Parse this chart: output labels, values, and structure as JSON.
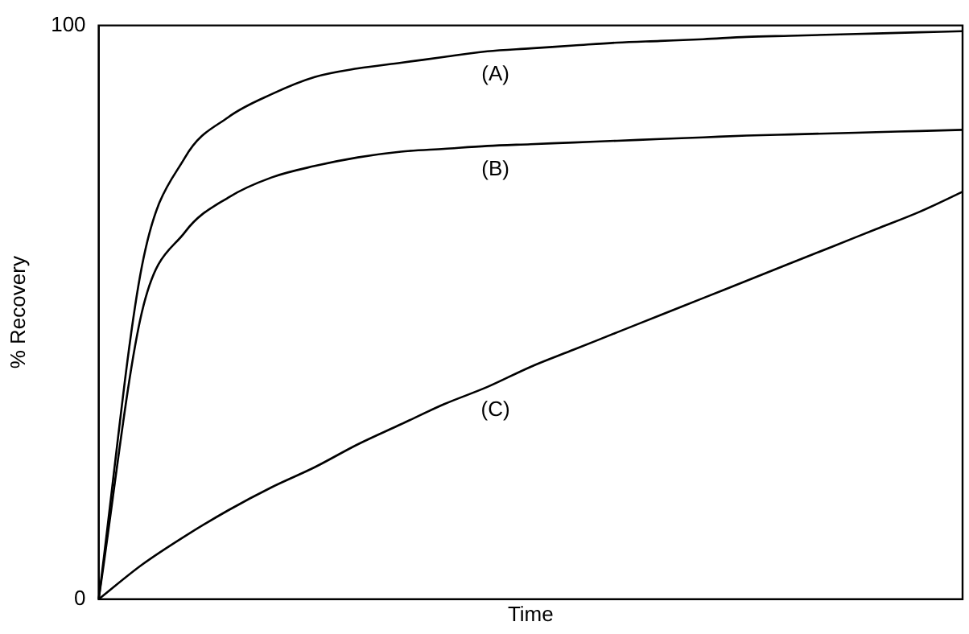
{
  "chart_data": {
    "type": "line",
    "xlabel": "Time",
    "ylabel": "% Recovery",
    "categories": [
      null,
      null,
      null,
      null,
      null,
      null,
      null,
      null,
      null,
      null,
      null,
      null,
      null,
      null,
      null,
      null,
      null,
      null,
      null,
      null,
      null
    ],
    "series": [
      {
        "color": "#000000",
        "values": [
          0,
          58,
          77,
          84,
          88,
          91,
          92.5,
          93.5,
          94.5,
          95.5,
          96,
          96.5,
          97,
          97.3,
          97.6,
          98,
          98.2,
          98.4,
          98.6,
          98.8,
          99
        ]
      },
      {
        "color": "#000000",
        "values": [
          0,
          50,
          64,
          70,
          73.5,
          75.5,
          77,
          78,
          78.5,
          79,
          79.3,
          79.6,
          79.9,
          80.2,
          80.5,
          80.8,
          81,
          81.2,
          81.4,
          81.6,
          81.8
        ]
      },
      {
        "color": "#000000",
        "values": [
          0,
          6,
          11,
          15.5,
          19.5,
          23,
          27,
          30.5,
          34,
          37,
          40.5,
          43.5,
          46.5,
          49.5,
          52.5,
          55.5,
          58.5,
          61.5,
          64.5,
          67.5,
          71
        ]
      }
    ],
    "annotations": [
      "(A)",
      "(B)",
      "(C)"
    ],
    "ylim": [
      0,
      100
    ],
    "yticks": [
      0,
      100
    ],
    "tick_labels": "y",
    "grid": false,
    "legend": false,
    "marker": "none",
    "line_style": "solid"
  }
}
